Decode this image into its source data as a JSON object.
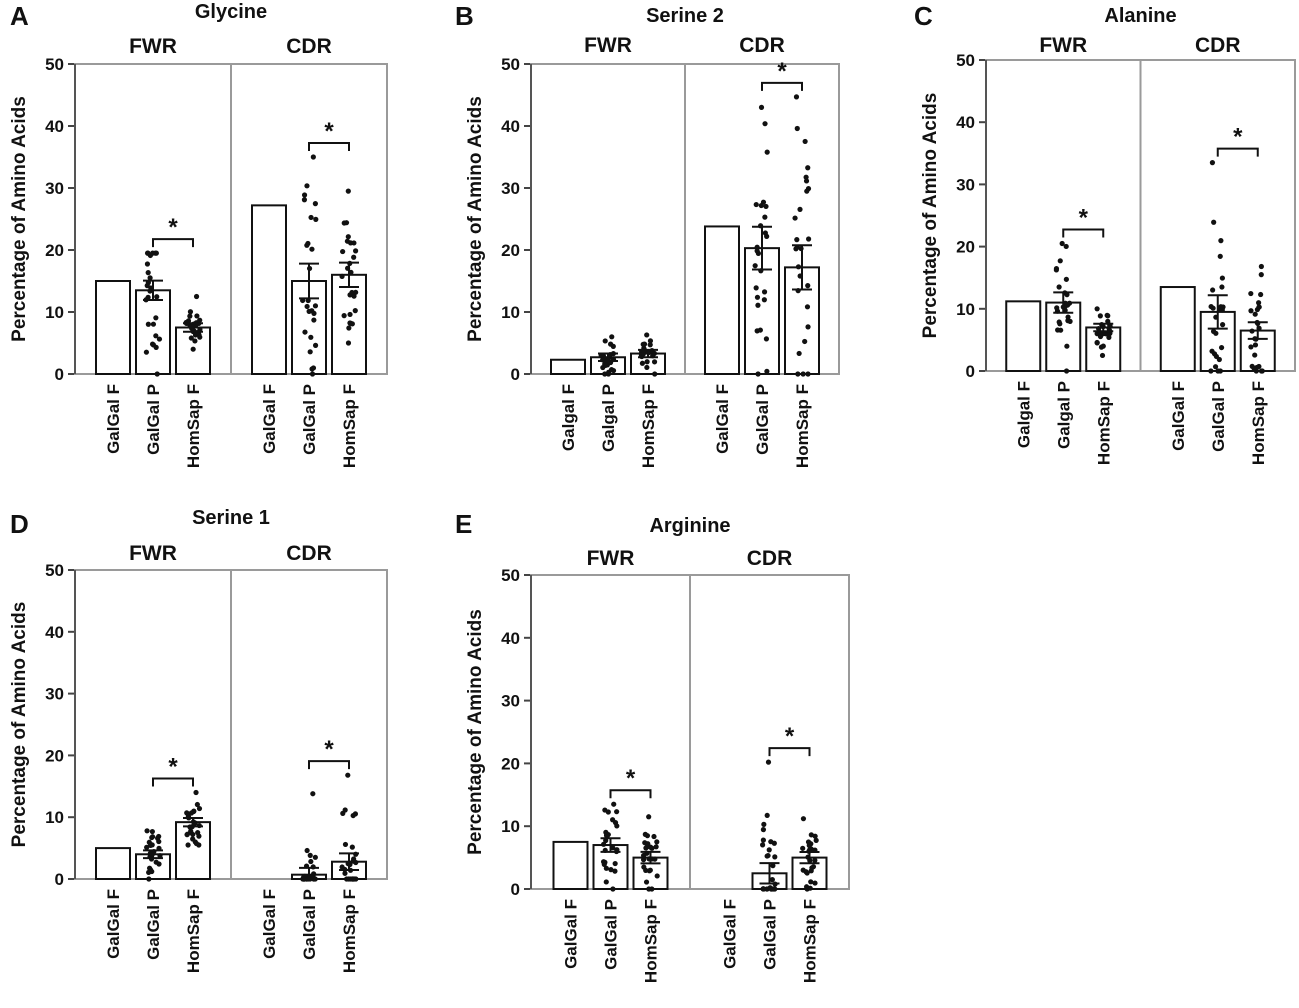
{
  "chart_data": [
    {
      "type": "bar",
      "panel": "A",
      "title": "Glycine",
      "ylabel": "Percentage of Amino Acids",
      "ylim": [
        0,
        50
      ],
      "yticks": [
        0,
        10,
        20,
        30,
        40,
        50
      ],
      "regions": [
        {
          "label": "FWR",
          "categories": [
            "GalGal F",
            "GalGal P",
            "HomSap F"
          ],
          "values": [
            15,
            13.5,
            7.5
          ],
          "spread": [
            [
              15,
              15
            ],
            [
              0,
              19.5
            ],
            [
              4,
              12.5
            ]
          ],
          "significance": {
            "from": 1,
            "to": 2,
            "label": "*"
          }
        },
        {
          "label": "CDR",
          "categories": [
            "GalGal F",
            "GalGal P",
            "HomSap F"
          ],
          "values": [
            27.2,
            15,
            16
          ],
          "spread": [
            [
              27.2,
              27.2
            ],
            [
              0,
              35
            ],
            [
              5,
              29.5
            ]
          ],
          "significance": {
            "from": 1,
            "to": 2,
            "label": "*"
          }
        }
      ]
    },
    {
      "type": "bar",
      "panel": "B",
      "title": "Serine 2",
      "ylabel": "Percentage of Amino Acids",
      "ylim": [
        0,
        50
      ],
      "yticks": [
        0,
        10,
        20,
        30,
        40,
        50
      ],
      "regions": [
        {
          "label": "FWR",
          "categories": [
            "Galgal F",
            "Galgal P",
            "HomSap F"
          ],
          "values": [
            2.3,
            2.7,
            3.3
          ],
          "spread": [
            [
              2.3,
              2.3
            ],
            [
              0,
              6
            ],
            [
              0,
              6.3
            ]
          ],
          "significance": null
        },
        {
          "label": "CDR",
          "categories": [
            "GalGal F",
            "GalGal P",
            "HomSap F"
          ],
          "values": [
            23.8,
            20.3,
            17.2
          ],
          "spread": [
            [
              23.8,
              23.8
            ],
            [
              0,
              43
            ],
            [
              0,
              44.7
            ]
          ],
          "significance": {
            "from": 1,
            "to": 2,
            "label": "*"
          }
        }
      ]
    },
    {
      "type": "bar",
      "panel": "C",
      "title": "Alanine",
      "ylabel": "Percentage of Amino Acids",
      "ylim": [
        0,
        50
      ],
      "yticks": [
        0,
        10,
        20,
        30,
        40,
        50
      ],
      "regions": [
        {
          "label": "FWR",
          "categories": [
            "Galgal F",
            "Galgal P",
            "HomSap F"
          ],
          "values": [
            11.2,
            11,
            7
          ],
          "spread": [
            [
              11.2,
              11.2
            ],
            [
              0,
              20.5
            ],
            [
              2.5,
              10
            ]
          ],
          "significance": {
            "from": 1,
            "to": 2,
            "label": "*"
          }
        },
        {
          "label": "CDR",
          "categories": [
            "GalGal F",
            "GalGal P",
            "HomSap F"
          ],
          "values": [
            13.5,
            9.5,
            6.5
          ],
          "spread": [
            [
              13.5,
              13.5
            ],
            [
              0,
              33.5
            ],
            [
              0,
              16.8
            ]
          ],
          "significance": {
            "from": 1,
            "to": 2,
            "label": "*"
          }
        }
      ]
    },
    {
      "type": "bar",
      "panel": "D",
      "title": "Serine 1",
      "ylabel": "Percentage of Amino Acids",
      "ylim": [
        0,
        50
      ],
      "yticks": [
        0,
        10,
        20,
        30,
        40,
        50
      ],
      "regions": [
        {
          "label": "FWR",
          "categories": [
            "GalGal F",
            "GalGal P",
            "HomSap F"
          ],
          "values": [
            5,
            4,
            9.2
          ],
          "spread": [
            [
              5,
              5
            ],
            [
              0,
              7.8
            ],
            [
              5.5,
              14
            ]
          ],
          "significance": {
            "from": 1,
            "to": 2,
            "label": "*"
          }
        },
        {
          "label": "CDR",
          "categories": [
            "GalGal F",
            "GalGal P",
            "HomSap F"
          ],
          "values": [
            0,
            0.7,
            2.8
          ],
          "spread": [
            [
              0,
              0
            ],
            [
              0,
              13.8
            ],
            [
              0,
              16.8
            ]
          ],
          "significance": {
            "from": 1,
            "to": 2,
            "label": "*"
          }
        }
      ]
    },
    {
      "type": "bar",
      "panel": "E",
      "title": "Arginine",
      "ylabel": "Percentage of Amino Acids",
      "ylim": [
        0,
        50
      ],
      "yticks": [
        0,
        10,
        20,
        30,
        40,
        50
      ],
      "regions": [
        {
          "label": "FWR",
          "categories": [
            "GalGal F",
            "GalGal P",
            "HomSap F"
          ],
          "values": [
            7.5,
            7,
            5
          ],
          "spread": [
            [
              7.5,
              7.5
            ],
            [
              0,
              13.5
            ],
            [
              0,
              11.5
            ]
          ],
          "significance": {
            "from": 1,
            "to": 2,
            "label": "*"
          }
        },
        {
          "label": "CDR",
          "categories": [
            "GalGal F",
            "GalGal P",
            "HomSap F"
          ],
          "values": [
            0,
            2.5,
            5
          ],
          "spread": [
            [
              0,
              0
            ],
            [
              0,
              20.2
            ],
            [
              0,
              11.2
            ]
          ],
          "significance": {
            "from": 1,
            "to": 2,
            "label": "*"
          }
        }
      ]
    }
  ]
}
